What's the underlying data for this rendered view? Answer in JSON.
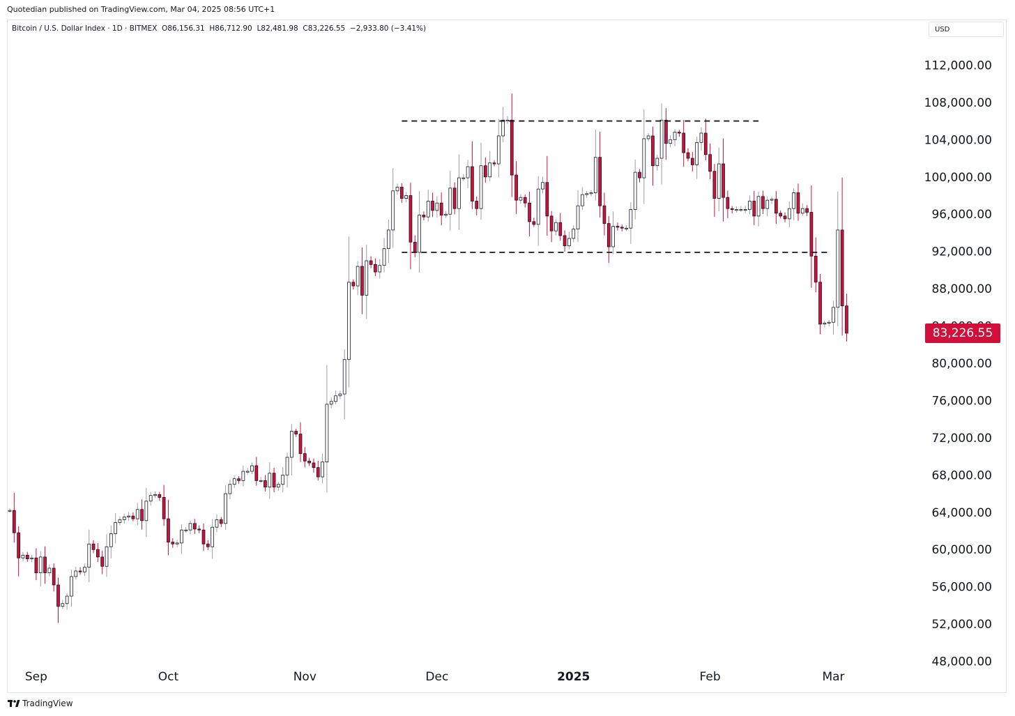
{
  "header": {
    "published": "Quotedian published on TradingView.com, Mar 04, 2025 08:56 UTC+1"
  },
  "legend": {
    "symbol": "Bitcoin / U.S. Dollar Index · 1D · BITMEX",
    "open": "O86,156.31",
    "high": "H86,712.90",
    "low": "L82,481.98",
    "close": "C83,226.55",
    "change": "−2,933.80 (−3.41%)"
  },
  "currency": "USD",
  "last_price_label": "83,226.55",
  "branding": "TradingView",
  "colors": {
    "up_body": "#ffffff",
    "up_border": "#131722",
    "down_body": "#d0103a",
    "down_border": "#131722",
    "up_wick": "#9e9e9e",
    "down_wick": "#d0103a",
    "last_price": "#d0103a"
  },
  "chart_data": {
    "type": "candlestick",
    "title": "",
    "xlabel": "",
    "ylabel": "",
    "y_axis_side": "right",
    "ylim": [
      45500,
      114800
    ],
    "y_ticks": [
      48000,
      52000,
      56000,
      60000,
      64000,
      68000,
      72000,
      76000,
      80000,
      84000,
      88000,
      92000,
      96000,
      100000,
      104000,
      108000,
      112000
    ],
    "y_tick_labels": [
      "48,000.00",
      "52,000.00",
      "56,000.00",
      "60,000.00",
      "64,000.00",
      "68,000.00",
      "72,000.00",
      "76,000.00",
      "80,000.00",
      "84,000.00",
      "88,000.00",
      "92,000.00",
      "96,000.00",
      "100,000.00",
      "104,000.00",
      "108,000.00",
      "112,000.00"
    ],
    "x_start": "2024-08-26",
    "x_end": "2025-03-12",
    "x_ticks": [
      {
        "date": "2024-09-01",
        "label": "Sep",
        "bold": false
      },
      {
        "date": "2024-10-01",
        "label": "Oct",
        "bold": false
      },
      {
        "date": "2024-11-01",
        "label": "Nov",
        "bold": false
      },
      {
        "date": "2024-12-01",
        "label": "Dec",
        "bold": false
      },
      {
        "date": "2025-01-01",
        "label": "2025",
        "bold": true
      },
      {
        "date": "2025-02-01",
        "label": "Feb",
        "bold": false
      },
      {
        "date": "2025-03-01",
        "label": "Mar",
        "bold": false
      }
    ],
    "close_prices": [
      {
        "date": "2024-08-26",
        "close": 64200
      },
      {
        "date": "2024-08-27",
        "close": 61800
      },
      {
        "date": "2024-08-28",
        "close": 59100
      },
      {
        "date": "2024-08-29",
        "close": 59400
      },
      {
        "date": "2024-08-30",
        "close": 59000
      },
      {
        "date": "2024-08-31",
        "close": 59100
      },
      {
        "date": "2024-09-01",
        "close": 57500
      },
      {
        "date": "2024-09-02",
        "close": 59200
      },
      {
        "date": "2024-09-03",
        "close": 57500
      },
      {
        "date": "2024-09-04",
        "close": 58000
      },
      {
        "date": "2024-09-05",
        "close": 56200
      },
      {
        "date": "2024-09-06",
        "close": 53900
      },
      {
        "date": "2024-09-07",
        "close": 54200
      },
      {
        "date": "2024-09-08",
        "close": 55000
      },
      {
        "date": "2024-09-09",
        "close": 57100
      },
      {
        "date": "2024-09-10",
        "close": 57700
      },
      {
        "date": "2024-09-11",
        "close": 57600
      },
      {
        "date": "2024-09-12",
        "close": 58100
      },
      {
        "date": "2024-09-13",
        "close": 60600
      },
      {
        "date": "2024-09-14",
        "close": 60000
      },
      {
        "date": "2024-09-15",
        "close": 59200
      },
      {
        "date": "2024-09-16",
        "close": 58200
      },
      {
        "date": "2024-09-17",
        "close": 60300
      },
      {
        "date": "2024-09-18",
        "close": 61700
      },
      {
        "date": "2024-09-19",
        "close": 62900
      },
      {
        "date": "2024-09-20",
        "close": 63200
      },
      {
        "date": "2024-09-21",
        "close": 63500
      },
      {
        "date": "2024-09-22",
        "close": 63600
      },
      {
        "date": "2024-09-23",
        "close": 63300
      },
      {
        "date": "2024-09-24",
        "close": 64300
      },
      {
        "date": "2024-09-25",
        "close": 63100
      },
      {
        "date": "2024-09-26",
        "close": 65200
      },
      {
        "date": "2024-09-27",
        "close": 65800
      },
      {
        "date": "2024-09-28",
        "close": 65900
      },
      {
        "date": "2024-09-29",
        "close": 65600
      },
      {
        "date": "2024-09-30",
        "close": 63300
      },
      {
        "date": "2024-10-01",
        "close": 60800
      },
      {
        "date": "2024-10-02",
        "close": 60600
      },
      {
        "date": "2024-10-03",
        "close": 60700
      },
      {
        "date": "2024-10-04",
        "close": 62100
      },
      {
        "date": "2024-10-05",
        "close": 62100
      },
      {
        "date": "2024-10-06",
        "close": 62800
      },
      {
        "date": "2024-10-07",
        "close": 62200
      },
      {
        "date": "2024-10-08",
        "close": 62100
      },
      {
        "date": "2024-10-09",
        "close": 60600
      },
      {
        "date": "2024-10-10",
        "close": 60300
      },
      {
        "date": "2024-10-11",
        "close": 62400
      },
      {
        "date": "2024-10-12",
        "close": 63200
      },
      {
        "date": "2024-10-13",
        "close": 62800
      },
      {
        "date": "2024-10-14",
        "close": 66000
      },
      {
        "date": "2024-10-15",
        "close": 67000
      },
      {
        "date": "2024-10-16",
        "close": 67600
      },
      {
        "date": "2024-10-17",
        "close": 67400
      },
      {
        "date": "2024-10-18",
        "close": 68400
      },
      {
        "date": "2024-10-19",
        "close": 68400
      },
      {
        "date": "2024-10-20",
        "close": 69000
      },
      {
        "date": "2024-10-21",
        "close": 67400
      },
      {
        "date": "2024-10-22",
        "close": 67400
      },
      {
        "date": "2024-10-23",
        "close": 66700
      },
      {
        "date": "2024-10-24",
        "close": 68200
      },
      {
        "date": "2024-10-25",
        "close": 66700
      },
      {
        "date": "2024-10-26",
        "close": 67000
      },
      {
        "date": "2024-10-27",
        "close": 68000
      },
      {
        "date": "2024-10-28",
        "close": 69900
      },
      {
        "date": "2024-10-29",
        "close": 72700
      },
      {
        "date": "2024-10-30",
        "close": 72400
      },
      {
        "date": "2024-10-31",
        "close": 70300
      },
      {
        "date": "2024-11-01",
        "close": 69500
      },
      {
        "date": "2024-11-02",
        "close": 69300
      },
      {
        "date": "2024-11-03",
        "close": 68800
      },
      {
        "date": "2024-11-04",
        "close": 67800
      },
      {
        "date": "2024-11-05",
        "close": 69400
      },
      {
        "date": "2024-11-06",
        "close": 75600
      },
      {
        "date": "2024-11-07",
        "close": 75900
      },
      {
        "date": "2024-11-08",
        "close": 76500
      },
      {
        "date": "2024-11-09",
        "close": 76700
      },
      {
        "date": "2024-11-10",
        "close": 80400
      },
      {
        "date": "2024-11-11",
        "close": 88700
      },
      {
        "date": "2024-11-12",
        "close": 88300
      },
      {
        "date": "2024-11-13",
        "close": 90400
      },
      {
        "date": "2024-11-14",
        "close": 87300
      },
      {
        "date": "2024-11-15",
        "close": 91000
      },
      {
        "date": "2024-11-16",
        "close": 90600
      },
      {
        "date": "2024-11-17",
        "close": 89800
      },
      {
        "date": "2024-11-18",
        "close": 90500
      },
      {
        "date": "2024-11-19",
        "close": 92300
      },
      {
        "date": "2024-11-20",
        "close": 94300
      },
      {
        "date": "2024-11-21",
        "close": 98500
      },
      {
        "date": "2024-11-22",
        "close": 98900
      },
      {
        "date": "2024-11-23",
        "close": 97700
      },
      {
        "date": "2024-11-24",
        "close": 98000
      },
      {
        "date": "2024-11-25",
        "close": 93000
      },
      {
        "date": "2024-11-26",
        "close": 91900
      },
      {
        "date": "2024-11-27",
        "close": 95900
      },
      {
        "date": "2024-11-28",
        "close": 95700
      },
      {
        "date": "2024-11-29",
        "close": 97400
      },
      {
        "date": "2024-11-30",
        "close": 96400
      },
      {
        "date": "2024-12-01",
        "close": 97200
      },
      {
        "date": "2024-12-02",
        "close": 95900
      },
      {
        "date": "2024-12-03",
        "close": 96000
      },
      {
        "date": "2024-12-04",
        "close": 98800
      },
      {
        "date": "2024-12-05",
        "close": 96600
      },
      {
        "date": "2024-12-06",
        "close": 99900
      },
      {
        "date": "2024-12-07",
        "close": 99900
      },
      {
        "date": "2024-12-08",
        "close": 101100
      },
      {
        "date": "2024-12-09",
        "close": 97400
      },
      {
        "date": "2024-12-10",
        "close": 96600
      },
      {
        "date": "2024-12-11",
        "close": 101200
      },
      {
        "date": "2024-12-12",
        "close": 100000
      },
      {
        "date": "2024-12-13",
        "close": 101500
      },
      {
        "date": "2024-12-14",
        "close": 101400
      },
      {
        "date": "2024-12-15",
        "close": 104400
      },
      {
        "date": "2024-12-16",
        "close": 106100
      },
      {
        "date": "2024-12-17",
        "close": 106100
      },
      {
        "date": "2024-12-18",
        "close": 100200
      },
      {
        "date": "2024-12-19",
        "close": 97500
      },
      {
        "date": "2024-12-20",
        "close": 97800
      },
      {
        "date": "2024-12-21",
        "close": 97200
      },
      {
        "date": "2024-12-22",
        "close": 95200
      },
      {
        "date": "2024-12-23",
        "close": 94900
      },
      {
        "date": "2024-12-24",
        "close": 98700
      },
      {
        "date": "2024-12-25",
        "close": 99400
      },
      {
        "date": "2024-12-26",
        "close": 95800
      },
      {
        "date": "2024-12-27",
        "close": 94200
      },
      {
        "date": "2024-12-28",
        "close": 95100
      },
      {
        "date": "2024-12-29",
        "close": 93700
      },
      {
        "date": "2024-12-30",
        "close": 92600
      },
      {
        "date": "2024-12-31",
        "close": 93400
      },
      {
        "date": "2025-01-01",
        "close": 94400
      },
      {
        "date": "2025-01-02",
        "close": 96900
      },
      {
        "date": "2025-01-03",
        "close": 98100
      },
      {
        "date": "2025-01-04",
        "close": 98200
      },
      {
        "date": "2025-01-05",
        "close": 98300
      },
      {
        "date": "2025-01-06",
        "close": 102100
      },
      {
        "date": "2025-01-07",
        "close": 96900
      },
      {
        "date": "2025-01-08",
        "close": 95000
      },
      {
        "date": "2025-01-09",
        "close": 92500
      },
      {
        "date": "2025-01-10",
        "close": 94700
      },
      {
        "date": "2025-01-11",
        "close": 94600
      },
      {
        "date": "2025-01-12",
        "close": 94500
      },
      {
        "date": "2025-01-13",
        "close": 94500
      },
      {
        "date": "2025-01-14",
        "close": 96500
      },
      {
        "date": "2025-01-15",
        "close": 100500
      },
      {
        "date": "2025-01-16",
        "close": 99900
      },
      {
        "date": "2025-01-17",
        "close": 104100
      },
      {
        "date": "2025-01-18",
        "close": 104400
      },
      {
        "date": "2025-01-19",
        "close": 101200
      },
      {
        "date": "2025-01-20",
        "close": 102000
      },
      {
        "date": "2025-01-21",
        "close": 106100
      },
      {
        "date": "2025-01-22",
        "close": 103600
      },
      {
        "date": "2025-01-23",
        "close": 104000
      },
      {
        "date": "2025-01-24",
        "close": 104800
      },
      {
        "date": "2025-01-25",
        "close": 104700
      },
      {
        "date": "2025-01-26",
        "close": 102600
      },
      {
        "date": "2025-01-27",
        "close": 102000
      },
      {
        "date": "2025-01-28",
        "close": 101300
      },
      {
        "date": "2025-01-29",
        "close": 103700
      },
      {
        "date": "2025-01-30",
        "close": 104700
      },
      {
        "date": "2025-01-31",
        "close": 102400
      },
      {
        "date": "2025-02-01",
        "close": 100600
      },
      {
        "date": "2025-02-02",
        "close": 97700
      },
      {
        "date": "2025-02-03",
        "close": 101400
      },
      {
        "date": "2025-02-04",
        "close": 97800
      },
      {
        "date": "2025-02-05",
        "close": 96600
      },
      {
        "date": "2025-02-06",
        "close": 96500
      },
      {
        "date": "2025-02-07",
        "close": 96500
      },
      {
        "date": "2025-02-08",
        "close": 96500
      },
      {
        "date": "2025-02-09",
        "close": 96500
      },
      {
        "date": "2025-02-10",
        "close": 97400
      },
      {
        "date": "2025-02-11",
        "close": 95800
      },
      {
        "date": "2025-02-12",
        "close": 97900
      },
      {
        "date": "2025-02-13",
        "close": 96600
      },
      {
        "date": "2025-02-14",
        "close": 97500
      },
      {
        "date": "2025-02-15",
        "close": 97600
      },
      {
        "date": "2025-02-16",
        "close": 96100
      },
      {
        "date": "2025-02-17",
        "close": 95800
      },
      {
        "date": "2025-02-18",
        "close": 95500
      },
      {
        "date": "2025-02-19",
        "close": 96600
      },
      {
        "date": "2025-02-20",
        "close": 98300
      },
      {
        "date": "2025-02-21",
        "close": 96100
      },
      {
        "date": "2025-02-22",
        "close": 96600
      },
      {
        "date": "2025-02-23",
        "close": 96200
      },
      {
        "date": "2025-02-24",
        "close": 91500
      },
      {
        "date": "2025-02-25",
        "close": 88700
      },
      {
        "date": "2025-02-26",
        "close": 84200
      },
      {
        "date": "2025-02-27",
        "close": 84300
      },
      {
        "date": "2025-02-28",
        "close": 84400
      },
      {
        "date": "2025-03-01",
        "close": 86000
      },
      {
        "date": "2025-03-02",
        "close": 94300
      },
      {
        "date": "2025-03-03",
        "close": 86156
      },
      {
        "date": "2025-03-04",
        "close": 83227
      }
    ],
    "annotations": [
      {
        "type": "horizontal-dashed-line",
        "from": "2024-11-23",
        "to": "2025-02-12",
        "value": 106000
      },
      {
        "type": "horizontal-dashed-line",
        "from": "2024-11-23",
        "to": "2025-02-28",
        "value": 91900
      }
    ],
    "last_price": 83226.55
  }
}
